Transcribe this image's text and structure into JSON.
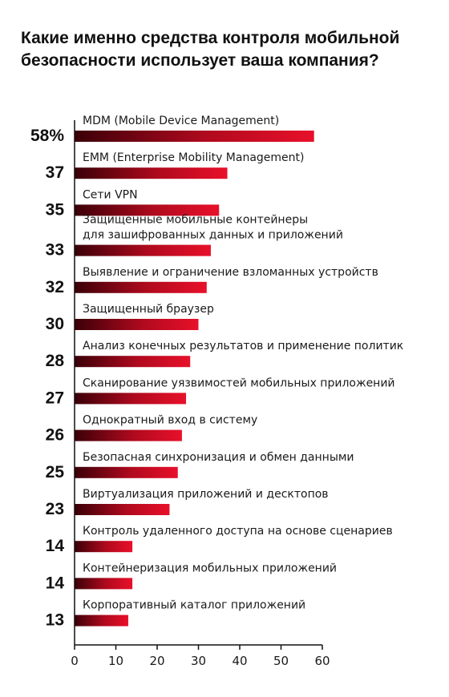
{
  "chart_data": {
    "type": "bar",
    "orientation": "horizontal",
    "title": "Какие именно средства контроля мобильной безопасности использует ваша компания?",
    "categories": [
      [
        "MDM (Mobile Device Management)"
      ],
      [
        "EMM (Enterprise Mobility Management)"
      ],
      [
        "Сети VPN"
      ],
      [
        "Защищенные мобильные контейнеры",
        "для зашифрованных данных и приложений"
      ],
      [
        "Выявление и ограничение взломанных устройств"
      ],
      [
        "Защищенный браузер"
      ],
      [
        "Анализ конечных результатов и применение политик"
      ],
      [
        "Сканирование уязвимостей мобильных приложений"
      ],
      [
        "Однократный вход в систему"
      ],
      [
        "Безопасная синхронизация и обмен данными"
      ],
      [
        "Виртуализация приложений и десктопов"
      ],
      [
        "Контроль удаленного доступа на основе сценариев"
      ],
      [
        "Контейнеризация мобильных приложений"
      ],
      [
        "Корпоративный каталог приложений"
      ]
    ],
    "values": [
      58,
      37,
      35,
      33,
      32,
      30,
      28,
      27,
      26,
      25,
      23,
      14,
      14,
      13
    ],
    "value_labels": [
      "58%",
      "37",
      "35",
      "33",
      "32",
      "30",
      "28",
      "27",
      "26",
      "25",
      "23",
      "14",
      "14",
      "13"
    ],
    "xlim": [
      0,
      60
    ],
    "xticks": [
      "0",
      "10",
      "20",
      "30",
      "40",
      "50",
      "60"
    ],
    "grid": false,
    "colors": {
      "bar_start": "#3a0008",
      "bar_end": "#e8102a",
      "axis": "#111111"
    }
  }
}
